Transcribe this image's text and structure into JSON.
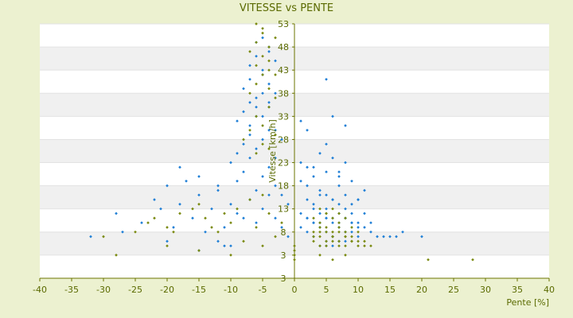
{
  "colors": {
    "background": "#ecf1d0",
    "band_light": "#ffffff",
    "band_dark": "#f0f0f0",
    "axis": "#6b7400",
    "text": "#5a6a00",
    "series_blue": "#1f7fd6",
    "series_olive": "#7a8a10"
  },
  "chart_data": {
    "type": "scatter",
    "title": "VITESSE vs PENTE",
    "xlabel": "Pente [%]",
    "ylabel": "Vitesse [km/h]",
    "xlim": [
      -40,
      40
    ],
    "ylim": [
      -2,
      53
    ],
    "x_ticks": [
      -40,
      -35,
      -30,
      -25,
      -20,
      -15,
      -10,
      -5,
      0,
      5,
      10,
      15,
      20,
      25,
      30,
      35,
      40
    ],
    "y_ticks": [
      3,
      8,
      13,
      18,
      23,
      28,
      33,
      38,
      43,
      48,
      53
    ],
    "y_tick_labels": [
      "3",
      "8",
      "13",
      "18",
      "23",
      "28",
      "33",
      "38",
      "43",
      "48",
      "53"
    ],
    "y_bottom_label": "3",
    "grid": "horizontal bands",
    "legend": "none",
    "series": [
      {
        "color": "#1f7fd6",
        "x": [
          -32,
          -28,
          -27,
          -24,
          -22,
          -21,
          -20,
          -19,
          -18,
          -17,
          -16,
          -15,
          -14,
          -13,
          -12,
          -11,
          -10,
          -9,
          -8,
          -7,
          -6,
          -5,
          -4,
          -3,
          -2,
          -1,
          -20,
          -18,
          -15,
          -12,
          -10,
          -9,
          -8,
          -7,
          -6,
          -5,
          -4,
          -3,
          -2,
          -1,
          -15,
          -12,
          -10,
          -9,
          -8,
          -7,
          -6,
          -5,
          -4,
          -3,
          -11,
          -9,
          -8,
          -7,
          -6,
          -5,
          -4,
          -3,
          -2,
          -8,
          -7,
          -6,
          -5,
          -4,
          -3,
          -7,
          -6,
          -5,
          -4,
          -3,
          -6,
          -5,
          -4,
          -7,
          -6,
          -5,
          -4,
          1,
          2,
          3,
          4,
          5,
          6,
          7,
          8,
          9,
          10,
          11,
          12,
          13,
          14,
          15,
          16,
          17,
          20,
          1,
          2,
          3,
          4,
          5,
          6,
          7,
          8,
          9,
          10,
          11,
          12,
          2,
          3,
          4,
          5,
          6,
          7,
          8,
          9,
          10,
          11,
          1,
          2,
          3,
          4,
          5,
          6,
          7,
          8,
          9,
          2,
          4,
          5,
          6,
          7,
          8,
          10,
          5,
          1,
          2,
          6,
          8,
          1,
          3,
          5,
          7,
          9,
          3,
          5,
          6,
          7,
          8,
          4,
          5,
          6,
          7,
          2,
          3,
          4,
          5,
          6,
          7,
          8,
          9,
          10
        ],
        "y": [
          7,
          12,
          8,
          10,
          15,
          13,
          18,
          9,
          14,
          19,
          11,
          16,
          8,
          13,
          17,
          9,
          14,
          12,
          11,
          15,
          10,
          13,
          16,
          11,
          9,
          7,
          6,
          22,
          20,
          18,
          23,
          19,
          21,
          24,
          17,
          20,
          22,
          18,
          16,
          14,
          4,
          6,
          5,
          25,
          27,
          29,
          26,
          28,
          30,
          24,
          5,
          32,
          34,
          31,
          35,
          33,
          36,
          30,
          28,
          39,
          41,
          37,
          42,
          40,
          38,
          44,
          46,
          43,
          47,
          45,
          49,
          50,
          48,
          36,
          33,
          38,
          35,
          9,
          8,
          10,
          9,
          8,
          7,
          9,
          8,
          8,
          7,
          9,
          8,
          7,
          7,
          7,
          7,
          8,
          7,
          12,
          11,
          13,
          12,
          11,
          10,
          12,
          11,
          10,
          9,
          12,
          10,
          15,
          14,
          16,
          13,
          15,
          14,
          13,
          12,
          15,
          17,
          19,
          18,
          20,
          17,
          16,
          15,
          18,
          16,
          14,
          22,
          25,
          27,
          24,
          21,
          23,
          15,
          41,
          32,
          30,
          33,
          31,
          23,
          22,
          21,
          20,
          19,
          7,
          6,
          7,
          6,
          6,
          5,
          5,
          5,
          6,
          11,
          10,
          10,
          11,
          11,
          10,
          11,
          10,
          10
        ]
      },
      {
        "color": "#7a8a10",
        "x": [
          -28,
          -30,
          -25,
          -23,
          -20,
          -18,
          -15,
          -14,
          -12,
          -10,
          -9,
          -8,
          -6,
          -4,
          -3,
          -22,
          -19,
          -16,
          -13,
          -11,
          -7,
          -5,
          -2,
          -8,
          -7,
          -6,
          -5,
          -4,
          -3,
          -7,
          -6,
          -5,
          -4,
          -3,
          -6,
          -5,
          -4,
          -7,
          -6,
          -5,
          -4,
          -3,
          -6,
          -5,
          -4,
          -3,
          -6,
          -5,
          -4,
          -20,
          -15,
          -10,
          -5,
          0,
          0,
          0,
          0,
          3,
          4,
          5,
          6,
          7,
          8,
          9,
          10,
          11,
          12,
          3,
          4,
          5,
          6,
          7,
          8,
          9,
          10,
          11,
          3,
          4,
          5,
          6,
          7,
          8,
          9,
          10,
          4,
          5,
          6,
          7,
          8,
          9,
          3,
          4,
          5,
          6,
          7,
          8,
          4,
          5,
          6,
          7,
          21,
          28,
          4,
          6,
          8
        ],
        "y": [
          3,
          7,
          8,
          10,
          9,
          12,
          14,
          11,
          8,
          10,
          13,
          6,
          9,
          12,
          7,
          11,
          8,
          13,
          9,
          12,
          15,
          16,
          10,
          28,
          30,
          33,
          31,
          35,
          29,
          38,
          40,
          42,
          39,
          37,
          44,
          46,
          43,
          47,
          49,
          51,
          45,
          42,
          53,
          52,
          48,
          50,
          25,
          27,
          26,
          5,
          4,
          3,
          5,
          4,
          5,
          2,
          3,
          6,
          5,
          5,
          6,
          5,
          5,
          6,
          5,
          5,
          5,
          7,
          7,
          6,
          7,
          6,
          7,
          6,
          6,
          6,
          8,
          8,
          8,
          7,
          8,
          7,
          7,
          8,
          9,
          9,
          8,
          9,
          8,
          9,
          11,
          10,
          12,
          11,
          10,
          11,
          13,
          12,
          13,
          12,
          2,
          2,
          3,
          2,
          3
        ]
      }
    ]
  }
}
